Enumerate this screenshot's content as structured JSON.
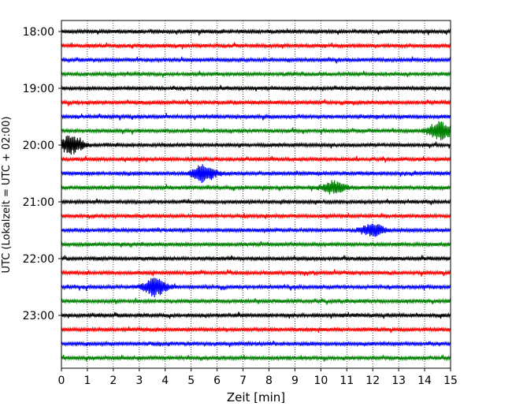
{
  "chart_data": {
    "type": "line",
    "title": "",
    "xlabel": "Zeit  [min]",
    "ylabel": "UTC (Lokalzeit = UTC + 02:00)",
    "xlim": [
      0,
      15
    ],
    "x_ticks": [
      "0",
      "1",
      "2",
      "3",
      "4",
      "5",
      "6",
      "7",
      "8",
      "9",
      "10",
      "11",
      "12",
      "13",
      "14",
      "15"
    ],
    "y_ticks": [
      "18:00",
      "19:00",
      "20:00",
      "21:00",
      "22:00",
      "23:00"
    ],
    "grid": "vertical dotted",
    "trace_colors": [
      "#000000",
      "#ff0000",
      "#0000ff",
      "#008000"
    ],
    "traces": [
      {
        "start": "18:00",
        "color": "#000000"
      },
      {
        "start": "18:15",
        "color": "#ff0000"
      },
      {
        "start": "18:30",
        "color": "#0000ff"
      },
      {
        "start": "18:45",
        "color": "#008000"
      },
      {
        "start": "19:00",
        "color": "#000000"
      },
      {
        "start": "19:15",
        "color": "#ff0000"
      },
      {
        "start": "19:30",
        "color": "#0000ff"
      },
      {
        "start": "19:45",
        "color": "#008000",
        "events": [
          {
            "t": 14.6,
            "amp": 1.0
          }
        ]
      },
      {
        "start": "20:00",
        "color": "#000000",
        "events": [
          {
            "t": 0.35,
            "amp": 1.0
          }
        ]
      },
      {
        "start": "20:15",
        "color": "#ff0000"
      },
      {
        "start": "20:30",
        "color": "#0000ff",
        "events": [
          {
            "t": 5.5,
            "amp": 1.0
          }
        ]
      },
      {
        "start": "20:45",
        "color": "#008000",
        "events": [
          {
            "t": 10.5,
            "amp": 0.7
          }
        ]
      },
      {
        "start": "21:00",
        "color": "#000000"
      },
      {
        "start": "21:15",
        "color": "#ff0000"
      },
      {
        "start": "21:30",
        "color": "#0000ff",
        "events": [
          {
            "t": 12.0,
            "amp": 0.7
          }
        ]
      },
      {
        "start": "21:45",
        "color": "#008000"
      },
      {
        "start": "22:00",
        "color": "#000000"
      },
      {
        "start": "22:15",
        "color": "#ff0000"
      },
      {
        "start": "22:30",
        "color": "#0000ff",
        "events": [
          {
            "t": 3.6,
            "amp": 1.0
          }
        ]
      },
      {
        "start": "22:45",
        "color": "#008000"
      },
      {
        "start": "23:00",
        "color": "#000000"
      },
      {
        "start": "23:15",
        "color": "#ff0000"
      },
      {
        "start": "23:30",
        "color": "#0000ff"
      },
      {
        "start": "23:45",
        "color": "#008000"
      }
    ]
  }
}
